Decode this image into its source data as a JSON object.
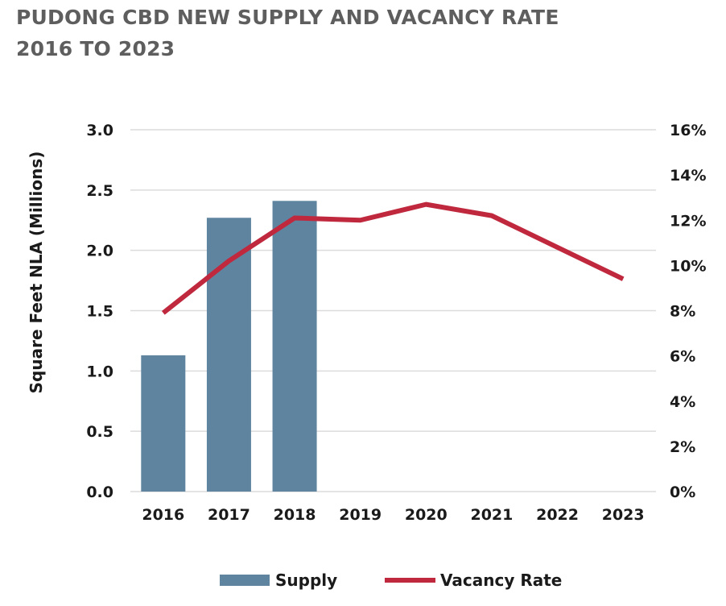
{
  "chart_data": {
    "title": "PUDONG CBD NEW SUPPLY AND VACANCY RATE",
    "subtitle": "2016 TO 2023",
    "type": "bar+line",
    "categories": [
      "2016",
      "2017",
      "2018",
      "2019",
      "2020",
      "2021",
      "2022",
      "2023"
    ],
    "ylabel": "Square Feet NLA (Millions)",
    "ylim": [
      0,
      3.0
    ],
    "yticks": [
      "0.0",
      "0.5",
      "1.0",
      "1.5",
      "2.0",
      "2.5",
      "3.0"
    ],
    "y2lim": [
      0,
      16
    ],
    "y2ticks": [
      "0%",
      "2%",
      "4%",
      "6%",
      "8%",
      "10%",
      "12%",
      "14%",
      "16%"
    ],
    "grid": true,
    "legend_position": "bottom",
    "series": [
      {
        "name": "Supply",
        "type": "bar",
        "axis": "left",
        "color": "#5f849f",
        "values": [
          1.13,
          2.27,
          2.41,
          null,
          null,
          null,
          null,
          null
        ]
      },
      {
        "name": "Vacancy Rate",
        "type": "line",
        "axis": "right",
        "color": "#c0283e",
        "values": [
          7.9,
          10.2,
          12.1,
          12.0,
          12.7,
          12.2,
          10.8,
          9.4
        ]
      }
    ]
  }
}
